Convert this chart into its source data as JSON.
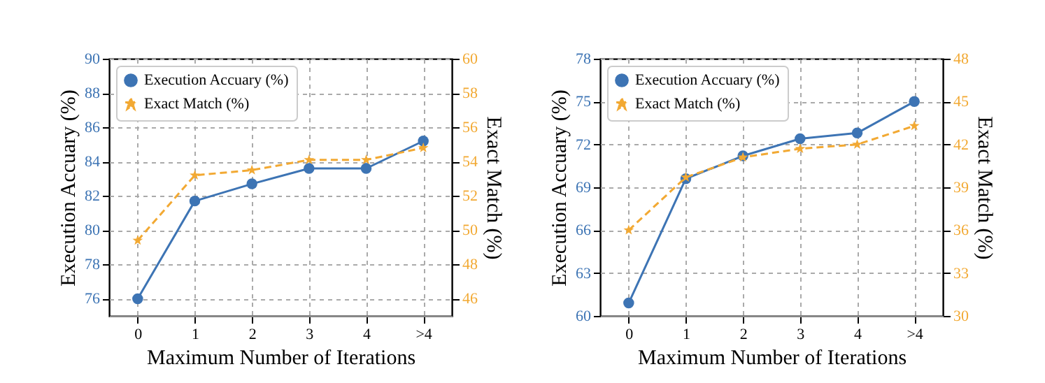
{
  "chart_data": [
    {
      "type": "line",
      "xlabel": "Maximum Number of Iterations",
      "ylabel": "Execution Accuary (%)",
      "y2label": "Exact Match (%)",
      "categories": [
        "0",
        "1",
        "2",
        "3",
        "4",
        ">4"
      ],
      "ylim": [
        75,
        90
      ],
      "yticks": [
        76,
        78,
        80,
        82,
        84,
        86,
        88,
        90
      ],
      "y2lim": [
        45,
        60
      ],
      "y2ticks": [
        46,
        48,
        50,
        52,
        54,
        56,
        58,
        60
      ],
      "grid": true,
      "legend": "top left",
      "series": [
        {
          "name": "Execution Accuary (%)",
          "color": "#3d74b4",
          "marker": "circle",
          "line_style": "solid",
          "values": [
            76.0,
            81.7,
            82.7,
            83.6,
            83.6,
            85.2
          ]
        },
        {
          "name": "Exact Match (%)",
          "color": "#f2a933",
          "marker": "star",
          "line_style": "dashed",
          "axis": "y2",
          "values": [
            49.4,
            53.2,
            53.5,
            54.1,
            54.1,
            54.8
          ]
        }
      ]
    },
    {
      "type": "line",
      "xlabel": "Maximum Number of Iterations",
      "ylabel": "Execution Accuary (%)",
      "y2label": "Exact Match (%)",
      "categories": [
        "0",
        "1",
        "2",
        "3",
        "4",
        ">4"
      ],
      "ylim": [
        60,
        78
      ],
      "yticks": [
        60,
        63,
        66,
        69,
        72,
        75,
        78
      ],
      "y2lim": [
        30,
        48
      ],
      "y2ticks": [
        30,
        33,
        36,
        39,
        42,
        45,
        48
      ],
      "grid": true,
      "legend": "top left",
      "series": [
        {
          "name": "Execution Accuary (%)",
          "color": "#3d74b4",
          "marker": "circle",
          "line_style": "solid",
          "values": [
            60.9,
            69.6,
            71.2,
            72.4,
            72.8,
            75.0
          ]
        },
        {
          "name": "Exact Match (%)",
          "color": "#f2a933",
          "marker": "star",
          "line_style": "dashed",
          "axis": "y2",
          "values": [
            36.0,
            39.7,
            41.1,
            41.7,
            42.0,
            43.3
          ]
        }
      ]
    }
  ]
}
